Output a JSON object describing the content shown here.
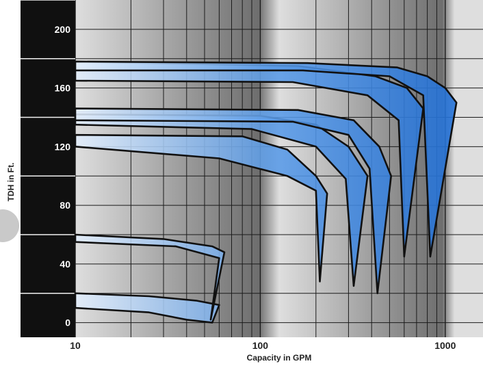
{
  "chart_data": {
    "type": "area",
    "title": "",
    "xlabel": "Capacity in GPM",
    "ylabel": "TDH in Ft.",
    "xscale": "log",
    "xlim": [
      10,
      1600
    ],
    "ylim": [
      -10,
      220
    ],
    "x_ticks": [
      {
        "value": 10,
        "label": "10"
      },
      {
        "value": 100,
        "label": "100"
      },
      {
        "value": 1000,
        "label": "1000"
      }
    ],
    "y_ticks": [
      {
        "value": 0,
        "label": "0"
      },
      {
        "value": 40,
        "label": "40"
      },
      {
        "value": 80,
        "label": "80"
      },
      {
        "value": 120,
        "label": "120"
      },
      {
        "value": 160,
        "label": "160"
      },
      {
        "value": 200,
        "label": "200"
      }
    ],
    "grid": true,
    "legend": "none",
    "colors": {
      "fill_light": "#e3eefb",
      "fill_dark": "#1f6fd8",
      "outline": "#111111",
      "band_dark": "#101010",
      "grid_bg_light": "#dedede",
      "grid_bg_dark": "#6e6e6e"
    },
    "series": [
      {
        "top": [
          [
            10,
            20
          ],
          [
            25,
            18
          ],
          [
            45,
            15
          ],
          [
            60,
            12
          ]
        ],
        "bottom": [
          [
            10,
            10
          ],
          [
            25,
            7
          ],
          [
            40,
            2
          ],
          [
            55,
            0
          ]
        ]
      },
      {
        "top": [
          [
            10,
            60
          ],
          [
            30,
            57
          ],
          [
            55,
            52
          ],
          [
            64,
            48
          ]
        ],
        "bottom": [
          [
            10,
            55
          ],
          [
            35,
            52
          ],
          [
            60,
            44
          ],
          [
            54,
            2
          ]
        ]
      },
      {
        "top": [
          [
            10,
            128
          ],
          [
            80,
            127
          ],
          [
            140,
            118
          ],
          [
            200,
            100
          ],
          [
            230,
            88
          ]
        ],
        "bottom": [
          [
            10,
            120
          ],
          [
            60,
            112
          ],
          [
            140,
            100
          ],
          [
            200,
            90
          ],
          [
            210,
            28
          ]
        ]
      },
      {
        "top": [
          [
            10,
            142
          ],
          [
            100,
            141
          ],
          [
            200,
            135
          ],
          [
            300,
            120
          ],
          [
            380,
            100
          ]
        ],
        "bottom": [
          [
            10,
            135
          ],
          [
            90,
            132
          ],
          [
            200,
            120
          ],
          [
            290,
            98
          ],
          [
            320,
            25
          ]
        ]
      },
      {
        "top": [
          [
            10,
            146
          ],
          [
            160,
            145
          ],
          [
            320,
            138
          ],
          [
            440,
            120
          ],
          [
            510,
            100
          ]
        ],
        "bottom": [
          [
            10,
            138
          ],
          [
            150,
            137
          ],
          [
            300,
            128
          ],
          [
            390,
            105
          ],
          [
            430,
            20
          ]
        ]
      },
      {
        "top": [
          [
            10,
            178
          ],
          [
            160,
            175
          ],
          [
            420,
            168
          ],
          [
            620,
            160
          ],
          [
            760,
            146
          ]
        ],
        "bottom": [
          [
            10,
            165
          ],
          [
            150,
            164
          ],
          [
            380,
            155
          ],
          [
            560,
            138
          ],
          [
            600,
            45
          ]
        ]
      },
      {
        "top": [
          [
            10,
            178
          ],
          [
            180,
            177
          ],
          [
            550,
            174
          ],
          [
            800,
            168
          ],
          [
            1000,
            160
          ],
          [
            1150,
            150
          ]
        ],
        "bottom": [
          [
            10,
            172
          ],
          [
            170,
            172
          ],
          [
            500,
            168
          ],
          [
            760,
            155
          ],
          [
            830,
            45
          ]
        ]
      }
    ]
  }
}
